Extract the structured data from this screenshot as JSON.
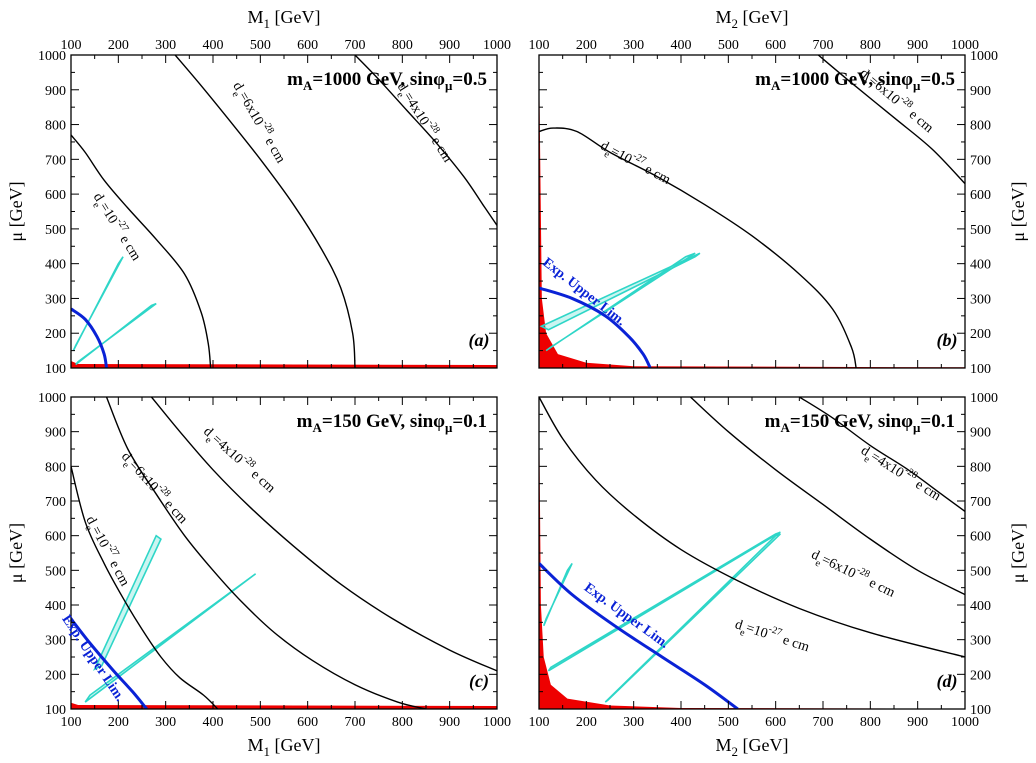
{
  "chart_data": [
    {
      "type": "line",
      "panel_letter": "(a)",
      "title": "m_A=1000 GeV, sinφ_μ=0.5",
      "title_parts": [
        "m",
        "A",
        "=1000 GeV, sinφ",
        "μ",
        "=0.5"
      ],
      "xlabel": "M",
      "xlabel_sub": "1",
      "xlabel_unit": "[GeV]",
      "ylabel": "μ",
      "ylabel_unit": "[GeV]",
      "xlim": [
        100,
        1000
      ],
      "ylim": [
        100,
        1000
      ],
      "xticks": [
        100,
        200,
        300,
        400,
        500,
        600,
        700,
        800,
        900,
        1000
      ],
      "yticks": [
        100,
        200,
        300,
        400,
        500,
        600,
        700,
        800,
        900,
        1000
      ],
      "series": [
        {
          "name": "d_e=10^-27 e cm",
          "label": "d=10  e cm",
          "points": [
            [
              100,
              770
            ],
            [
              130,
              720
            ],
            [
              170,
              640
            ],
            [
              220,
              560
            ],
            [
              280,
              470
            ],
            [
              340,
              370
            ],
            [
              375,
              260
            ],
            [
              390,
              170
            ],
            [
              395,
              100
            ]
          ]
        },
        {
          "name": "d_e=6x10^-28 e cm",
          "label": "d=6x10  e cm",
          "points": [
            [
              320,
              1000
            ],
            [
              370,
              920
            ],
            [
              430,
              820
            ],
            [
              500,
              700
            ],
            [
              570,
              570
            ],
            [
              630,
              440
            ],
            [
              670,
              330
            ],
            [
              695,
              200
            ],
            [
              700,
              100
            ]
          ]
        },
        {
          "name": "d_e=4x10^-28 e cm",
          "label": "d=4x10  e cm",
          "points": [
            [
              700,
              1000
            ],
            [
              750,
              930
            ],
            [
              810,
              840
            ],
            [
              870,
              750
            ],
            [
              930,
              650
            ],
            [
              970,
              570
            ],
            [
              1000,
              510
            ]
          ]
        },
        {
          "name": "Exp. Upper Lim.",
          "points": [
            [
              100,
              270
            ],
            [
              130,
              240
            ],
            [
              155,
              190
            ],
            [
              170,
              140
            ],
            [
              175,
              100
            ]
          ]
        }
      ],
      "excluded_region_max_y": 120,
      "cyan_bands": [
        [
          [
            105,
            150
          ],
          [
            200,
            400
          ],
          [
            210,
            420
          ],
          [
            110,
            165
          ]
        ],
        [
          [
            110,
            110
          ],
          [
            270,
            280
          ],
          [
            280,
            285
          ],
          [
            115,
            118
          ]
        ]
      ],
      "label_superscripts": {
        "d1": "-27",
        "d2": "-28",
        "d3": "-28"
      },
      "label_subscript": "e",
      "label_unit": "e cm"
    },
    {
      "type": "line",
      "panel_letter": "(b)",
      "title": "m_A=1000 GeV, sinφ_μ=0.5",
      "title_parts": [
        "m",
        "A",
        "=1000 GeV, sinφ",
        "μ",
        "=0.5"
      ],
      "xlabel": "M",
      "xlabel_sub": "2",
      "xlabel_unit": "[GeV]",
      "ylabel": "μ",
      "ylabel_unit": "[GeV]",
      "xlim": [
        100,
        1000
      ],
      "ylim": [
        100,
        1000
      ],
      "xticks": [
        100,
        200,
        300,
        400,
        500,
        600,
        700,
        800,
        900,
        1000
      ],
      "yticks": [
        100,
        200,
        300,
        400,
        500,
        600,
        700,
        800,
        900,
        1000
      ],
      "series": [
        {
          "name": "d_e=10^-27 e cm",
          "label": "d=10  e cm",
          "points": [
            [
              100,
              780
            ],
            [
              130,
              790
            ],
            [
              180,
              780
            ],
            [
              250,
              720
            ],
            [
              350,
              650
            ],
            [
              450,
              570
            ],
            [
              550,
              480
            ],
            [
              650,
              370
            ],
            [
              720,
              270
            ],
            [
              760,
              160
            ],
            [
              770,
              100
            ]
          ]
        },
        {
          "name": "d_e=6x10^-28 e cm",
          "label": "d=6x10  e cm",
          "points": [
            [
              690,
              1000
            ],
            [
              760,
              920
            ],
            [
              850,
              820
            ],
            [
              930,
              730
            ],
            [
              1000,
              630
            ]
          ]
        },
        {
          "name": "Exp. Upper Lim.",
          "points": [
            [
              100,
              330
            ],
            [
              170,
              300
            ],
            [
              240,
              250
            ],
            [
              290,
              190
            ],
            [
              320,
              140
            ],
            [
              335,
              100
            ]
          ]
        }
      ],
      "excluded_region": [
        [
          100,
          1000
        ],
        [
          106,
          300
        ],
        [
          115,
          200
        ],
        [
          140,
          140
        ],
        [
          200,
          115
        ],
        [
          300,
          105
        ],
        [
          1000,
          102
        ]
      ],
      "cyan_bands": [
        [
          [
            105,
            220
          ],
          [
            440,
            430
          ],
          [
            430,
            420
          ],
          [
            120,
            210
          ]
        ],
        [
          [
            115,
            150
          ],
          [
            410,
            420
          ],
          [
            430,
            430
          ],
          [
            125,
            160
          ]
        ]
      ],
      "label_superscripts": {
        "d1": "-27",
        "d2": "-28"
      },
      "label_subscript": "e",
      "label_unit": "e cm",
      "blue_label": "Exp. Upper Lim."
    },
    {
      "type": "line",
      "panel_letter": "(c)",
      "title": "m_A=150 GeV, sinφ_μ=0.1",
      "title_parts": [
        "m",
        "A",
        "=150 GeV, sinφ",
        "μ",
        "=0.1"
      ],
      "xlabel": "M",
      "xlabel_sub": "1",
      "xlabel_unit": "[GeV]",
      "ylabel": "μ",
      "ylabel_unit": "[GeV]",
      "xlim": [
        100,
        1000
      ],
      "ylim": [
        100,
        1000
      ],
      "xticks": [
        100,
        200,
        300,
        400,
        500,
        600,
        700,
        800,
        900,
        1000
      ],
      "yticks": [
        100,
        200,
        300,
        400,
        500,
        600,
        700,
        800,
        900,
        1000
      ],
      "series": [
        {
          "name": "d_e=10^-27 e cm",
          "label": "d=10  e cm",
          "points": [
            [
              100,
              800
            ],
            [
              130,
              640
            ],
            [
              170,
              520
            ],
            [
              210,
              420
            ],
            [
              250,
              330
            ],
            [
              290,
              250
            ],
            [
              330,
              190
            ],
            [
              380,
              140
            ],
            [
              410,
              100
            ]
          ]
        },
        {
          "name": "d_e=6x10^-28 e cm",
          "label": "d=6x10  e cm",
          "points": [
            [
              175,
              1000
            ],
            [
              220,
              850
            ],
            [
              280,
              720
            ],
            [
              340,
              600
            ],
            [
              400,
              500
            ],
            [
              460,
              410
            ],
            [
              530,
              320
            ],
            [
              610,
              240
            ],
            [
              700,
              170
            ],
            [
              790,
              120
            ],
            [
              850,
              100
            ]
          ]
        },
        {
          "name": "d_e=4x10^-28 e cm",
          "label": "d=4x10  e cm",
          "points": [
            [
              270,
              1000
            ],
            [
              330,
              900
            ],
            [
              400,
              790
            ],
            [
              480,
              680
            ],
            [
              570,
              570
            ],
            [
              670,
              460
            ],
            [
              780,
              360
            ],
            [
              900,
              270
            ],
            [
              1000,
              210
            ]
          ]
        },
        {
          "name": "Exp. Upper Lim.",
          "points": [
            [
              100,
              360
            ],
            [
              140,
              290
            ],
            [
              190,
              210
            ],
            [
              230,
              150
            ],
            [
              260,
              100
            ]
          ]
        }
      ],
      "excluded_region_max_y": 118,
      "cyan_bands": [
        [
          [
            150,
            215
          ],
          [
            280,
            600
          ],
          [
            290,
            590
          ],
          [
            165,
            225
          ]
        ],
        [
          [
            130,
            120
          ],
          [
            490,
            490
          ],
          [
            480,
            480
          ],
          [
            140,
            140
          ]
        ]
      ],
      "label_superscripts": {
        "d1": "-27",
        "d2": "-28",
        "d3": "-28"
      },
      "label_subscript": "e",
      "label_unit": "e cm",
      "blue_label": "Exp. Upper Lim."
    },
    {
      "type": "line",
      "panel_letter": "(d)",
      "title": "m_A=150 GeV, sinφ_μ=0.1",
      "title_parts": [
        "m",
        "A",
        "=150 GeV, sinφ",
        "μ",
        "=0.1"
      ],
      "xlabel": "M",
      "xlabel_sub": "2",
      "xlabel_unit": "[GeV]",
      "ylabel": "μ",
      "ylabel_unit": "[GeV]",
      "xlim": [
        100,
        1000
      ],
      "ylim": [
        100,
        1000
      ],
      "xticks": [
        100,
        200,
        300,
        400,
        500,
        600,
        700,
        800,
        900,
        1000
      ],
      "yticks": [
        100,
        200,
        300,
        400,
        500,
        600,
        700,
        800,
        900,
        1000
      ],
      "series": [
        {
          "name": "d_e=10^-27 e cm",
          "label": "d=10  e cm",
          "points": [
            [
              100,
              1000
            ],
            [
              150,
              880
            ],
            [
              220,
              760
            ],
            [
              300,
              660
            ],
            [
              400,
              560
            ],
            [
              520,
              470
            ],
            [
              650,
              390
            ],
            [
              800,
              320
            ],
            [
              1000,
              250
            ]
          ]
        },
        {
          "name": "d_e=6x10^-28 e cm",
          "label": "d=6x10  e cm",
          "points": [
            [
              420,
              1000
            ],
            [
              500,
              900
            ],
            [
              600,
              790
            ],
            [
              700,
              690
            ],
            [
              800,
              590
            ],
            [
              900,
              500
            ],
            [
              1000,
              430
            ]
          ]
        },
        {
          "name": "d_e=4x10^-28 e cm",
          "label": "d=4x10  e cm",
          "points": [
            [
              650,
              1000
            ],
            [
              720,
              940
            ],
            [
              800,
              860
            ],
            [
              880,
              790
            ],
            [
              950,
              720
            ],
            [
              1000,
              670
            ]
          ]
        },
        {
          "name": "Exp. Upper Lim.",
          "points": [
            [
              100,
              520
            ],
            [
              170,
              430
            ],
            [
              260,
              340
            ],
            [
              360,
              250
            ],
            [
              450,
              170
            ],
            [
              520,
              100
            ]
          ]
        }
      ],
      "excluded_region": [
        [
          100,
          1000
        ],
        [
          104,
          400
        ],
        [
          110,
          250
        ],
        [
          125,
          170
        ],
        [
          160,
          130
        ],
        [
          250,
          110
        ],
        [
          400,
          103
        ],
        [
          1000,
          101
        ]
      ],
      "cyan_bands": [
        [
          [
            115,
            360
          ],
          [
            170,
            520
          ],
          [
            160,
            500
          ],
          [
            110,
            340
          ]
        ],
        [
          [
            120,
            210
          ],
          [
            610,
            610
          ],
          [
            600,
            605
          ],
          [
            125,
            220
          ]
        ],
        [
          [
            240,
            120
          ],
          [
            600,
            600
          ],
          [
            610,
            605
          ],
          [
            245,
            125
          ]
        ]
      ],
      "label_superscripts": {
        "d1": "-27",
        "d2": "-28",
        "d3": "-28"
      },
      "label_subscript": "e",
      "label_unit": "e cm",
      "blue_label": "Exp. Upper Lim."
    }
  ],
  "colors": {
    "curve": "#000000",
    "exp_limit": "#0a22d6",
    "excluded": "#ee0000",
    "band": "#2fd6c8"
  }
}
